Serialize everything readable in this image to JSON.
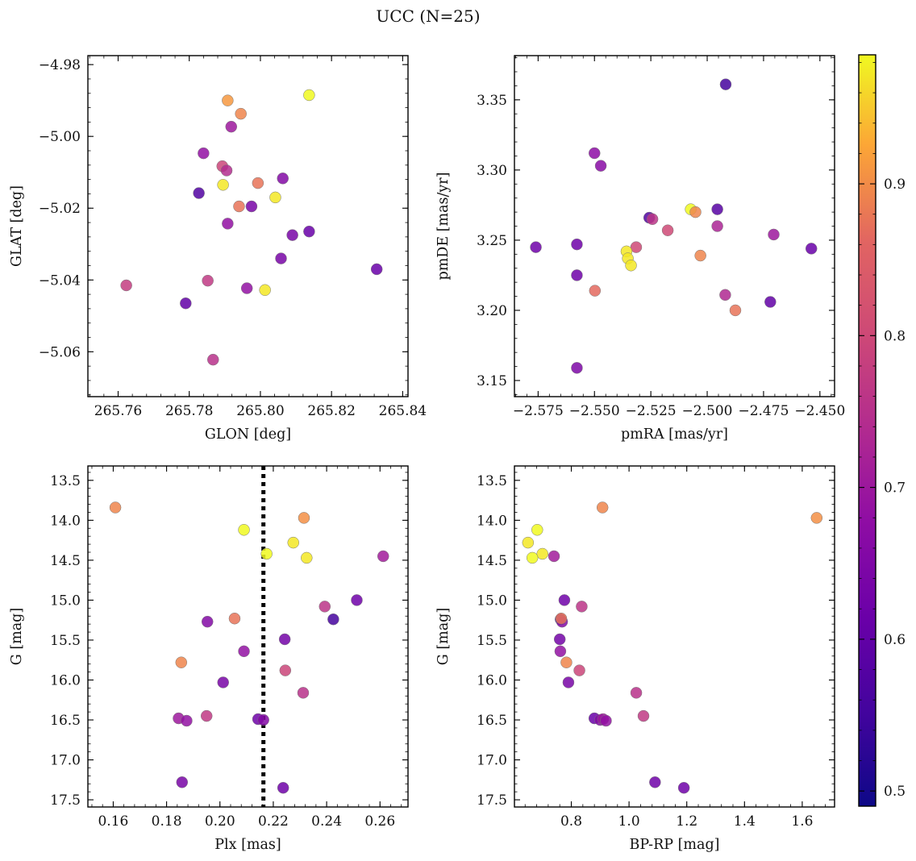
{
  "title": "UCC (N=25)",
  "colorbar": {
    "colormap": "plasma",
    "range": [
      0.49,
      0.985
    ],
    "ticks": [
      0.5,
      0.6,
      0.7,
      0.8,
      0.9
    ]
  },
  "chart_data": [
    {
      "type": "scatter",
      "id": "glon-glat",
      "xlabel": "GLON [deg]",
      "ylabel": "GLAT [deg]",
      "xlim": [
        265.7515,
        265.8415
      ],
      "ylim": [
        -5.0725,
        -4.9775
      ],
      "y_inverted": true,
      "xticks": [
        265.76,
        265.78,
        265.8,
        265.82,
        265.84
      ],
      "xtick_labels": [
        "265.76",
        "265.78",
        "265.80",
        "265.82",
        "265.84"
      ],
      "yticks": [
        -4.98,
        -5.0,
        -5.02,
        -5.04,
        -5.06
      ],
      "ytick_labels": [
        "−4.98",
        "−5.00",
        "−5.02",
        "−5.04",
        "−5.06"
      ],
      "x": [
        265.8137,
        265.7908,
        265.7945,
        265.7918,
        265.784,
        265.7893,
        265.7905,
        265.8063,
        265.7827,
        265.7895,
        265.7993,
        265.8042,
        265.794,
        265.7975,
        265.7908,
        265.8137,
        265.809,
        265.8058,
        265.8327,
        265.7623,
        265.7852,
        265.7962,
        265.8013,
        265.779,
        265.7867
      ],
      "y": [
        -4.9885,
        -4.99,
        -4.9937,
        -4.9973,
        -5.0047,
        -5.0083,
        -5.0095,
        -5.0117,
        -5.0158,
        -5.0135,
        -5.013,
        -5.017,
        -5.0195,
        -5.0195,
        -5.0243,
        -5.0265,
        -5.0275,
        -5.034,
        -5.037,
        -5.0415,
        -5.0402,
        -5.0423,
        -5.0428,
        -5.0465,
        -5.0622
      ],
      "c": [
        0.985,
        0.9,
        0.88,
        0.66,
        0.64,
        0.77,
        0.71,
        0.61,
        0.52,
        0.97,
        0.86,
        0.97,
        0.86,
        0.59,
        0.64,
        0.56,
        0.59,
        0.59,
        0.56,
        0.75,
        0.74,
        0.64,
        0.97,
        0.55,
        0.72
      ]
    },
    {
      "type": "scatter",
      "id": "pmra-pmde",
      "xlabel": "pmRA [mas/yr]",
      "ylabel": "pmDE [mas/yr]",
      "xlim": [
        -2.5855,
        -2.4435
      ],
      "ylim": [
        3.1385,
        3.3815
      ],
      "xticks": [
        -2.575,
        -2.55,
        -2.525,
        -2.5,
        -2.475,
        -2.45
      ],
      "xtick_labels": [
        "−2.575",
        "−2.550",
        "−2.525",
        "−2.500",
        "−2.475",
        "−2.450"
      ],
      "yticks": [
        3.15,
        3.2,
        3.25,
        3.3,
        3.35
      ],
      "ytick_labels": [
        "3.15",
        "3.20",
        "3.25",
        "3.30",
        "3.35"
      ],
      "x": [
        -2.4918,
        -2.55,
        -2.5472,
        -2.5257,
        -2.5243,
        -2.5073,
        -2.5052,
        -2.4955,
        -2.4955,
        -2.5175,
        -2.5315,
        -2.5358,
        -2.5352,
        -2.5338,
        -2.576,
        -2.5578,
        -2.4705,
        -2.4538,
        -2.503,
        -2.5578,
        -2.5498,
        -2.492,
        -2.4875,
        -2.472,
        -2.5578
      ],
      "y": [
        3.361,
        3.312,
        3.303,
        3.266,
        3.265,
        3.272,
        3.27,
        3.272,
        3.26,
        3.257,
        3.245,
        3.242,
        3.237,
        3.232,
        3.245,
        3.247,
        3.254,
        3.244,
        3.239,
        3.225,
        3.214,
        3.211,
        3.2,
        3.206,
        3.159
      ],
      "c": [
        0.5,
        0.63,
        0.62,
        0.52,
        0.73,
        0.985,
        0.88,
        0.53,
        0.69,
        0.78,
        0.78,
        0.97,
        0.97,
        0.97,
        0.57,
        0.57,
        0.66,
        0.56,
        0.88,
        0.57,
        0.85,
        0.7,
        0.86,
        0.55,
        0.6
      ]
    },
    {
      "type": "scatter",
      "id": "plx-g",
      "xlabel": "Plx [mas]",
      "ylabel": "G [mag]",
      "xlim": [
        0.1505,
        0.2705
      ],
      "ylim": [
        17.59,
        13.32
      ],
      "xticks": [
        0.16,
        0.18,
        0.2,
        0.22,
        0.24,
        0.26
      ],
      "xtick_labels": [
        "0.16",
        "0.18",
        "0.20",
        "0.22",
        "0.24",
        "0.26"
      ],
      "yticks": [
        13.5,
        14.0,
        14.5,
        15.0,
        15.5,
        16.0,
        16.5,
        17.0,
        17.5
      ],
      "ytick_labels": [
        "13.5",
        "14.0",
        "14.5",
        "15.0",
        "15.5",
        "16.0",
        "16.5",
        "17.0",
        "17.5"
      ],
      "vline": 0.2163,
      "x": [
        0.1608,
        0.209,
        0.2315,
        0.2275,
        0.2175,
        0.2325,
        0.2612,
        0.2513,
        0.2393,
        0.2425,
        0.1953,
        0.2055,
        0.209,
        0.2243,
        0.1855,
        0.2245,
        0.2012,
        0.2312,
        0.1845,
        0.1875,
        0.195,
        0.2143,
        0.2163,
        0.1858,
        0.2237
      ],
      "y": [
        13.84,
        14.12,
        13.97,
        14.28,
        14.42,
        14.47,
        14.45,
        15.0,
        15.08,
        15.24,
        15.27,
        15.23,
        15.64,
        15.49,
        15.78,
        15.88,
        16.03,
        16.16,
        16.48,
        16.51,
        16.45,
        16.49,
        16.5,
        17.28,
        17.35
      ],
      "c": [
        0.88,
        0.985,
        0.89,
        0.97,
        0.985,
        0.97,
        0.67,
        0.57,
        0.73,
        0.5,
        0.61,
        0.86,
        0.64,
        0.58,
        0.88,
        0.77,
        0.59,
        0.72,
        0.66,
        0.64,
        0.74,
        0.57,
        0.61,
        0.59,
        0.57
      ]
    },
    {
      "type": "scatter",
      "id": "bprp-g",
      "xlabel": "BP-RP [mag]",
      "ylabel": "G [mag]",
      "xlim": [
        0.603,
        1.712
      ],
      "ylim": [
        17.59,
        13.32
      ],
      "xticks": [
        0.8,
        1.0,
        1.2,
        1.4,
        1.6
      ],
      "xtick_labels": [
        "0.8",
        "1.0",
        "1.2",
        "1.4",
        "1.6"
      ],
      "yticks": [
        13.5,
        14.0,
        14.5,
        15.0,
        15.5,
        16.0,
        16.5,
        17.0,
        17.5
      ],
      "ytick_labels": [
        "13.5",
        "14.0",
        "14.5",
        "15.0",
        "15.5",
        "16.0",
        "16.5",
        "17.0",
        "17.5"
      ],
      "x": [
        0.908,
        1.65,
        0.682,
        0.65,
        0.7,
        0.665,
        0.74,
        0.776,
        0.836,
        0.763,
        0.768,
        0.76,
        0.762,
        0.783,
        0.828,
        0.79,
        1.025,
        0.88,
        0.9,
        0.91,
        0.92,
        1.05,
        1.09,
        1.19,
        0.765
      ],
      "y": [
        13.84,
        13.97,
        14.12,
        14.28,
        14.42,
        14.47,
        14.45,
        15.0,
        15.08,
        15.24,
        15.27,
        15.49,
        15.64,
        15.78,
        15.88,
        16.03,
        16.16,
        16.48,
        16.5,
        16.49,
        16.51,
        16.45,
        17.28,
        17.35,
        15.23
      ],
      "c": [
        0.88,
        0.89,
        0.985,
        0.97,
        0.97,
        0.985,
        0.67,
        0.57,
        0.73,
        0.5,
        0.61,
        0.58,
        0.64,
        0.88,
        0.77,
        0.59,
        0.72,
        0.56,
        0.61,
        0.66,
        0.64,
        0.74,
        0.57,
        0.57,
        0.86
      ]
    }
  ]
}
